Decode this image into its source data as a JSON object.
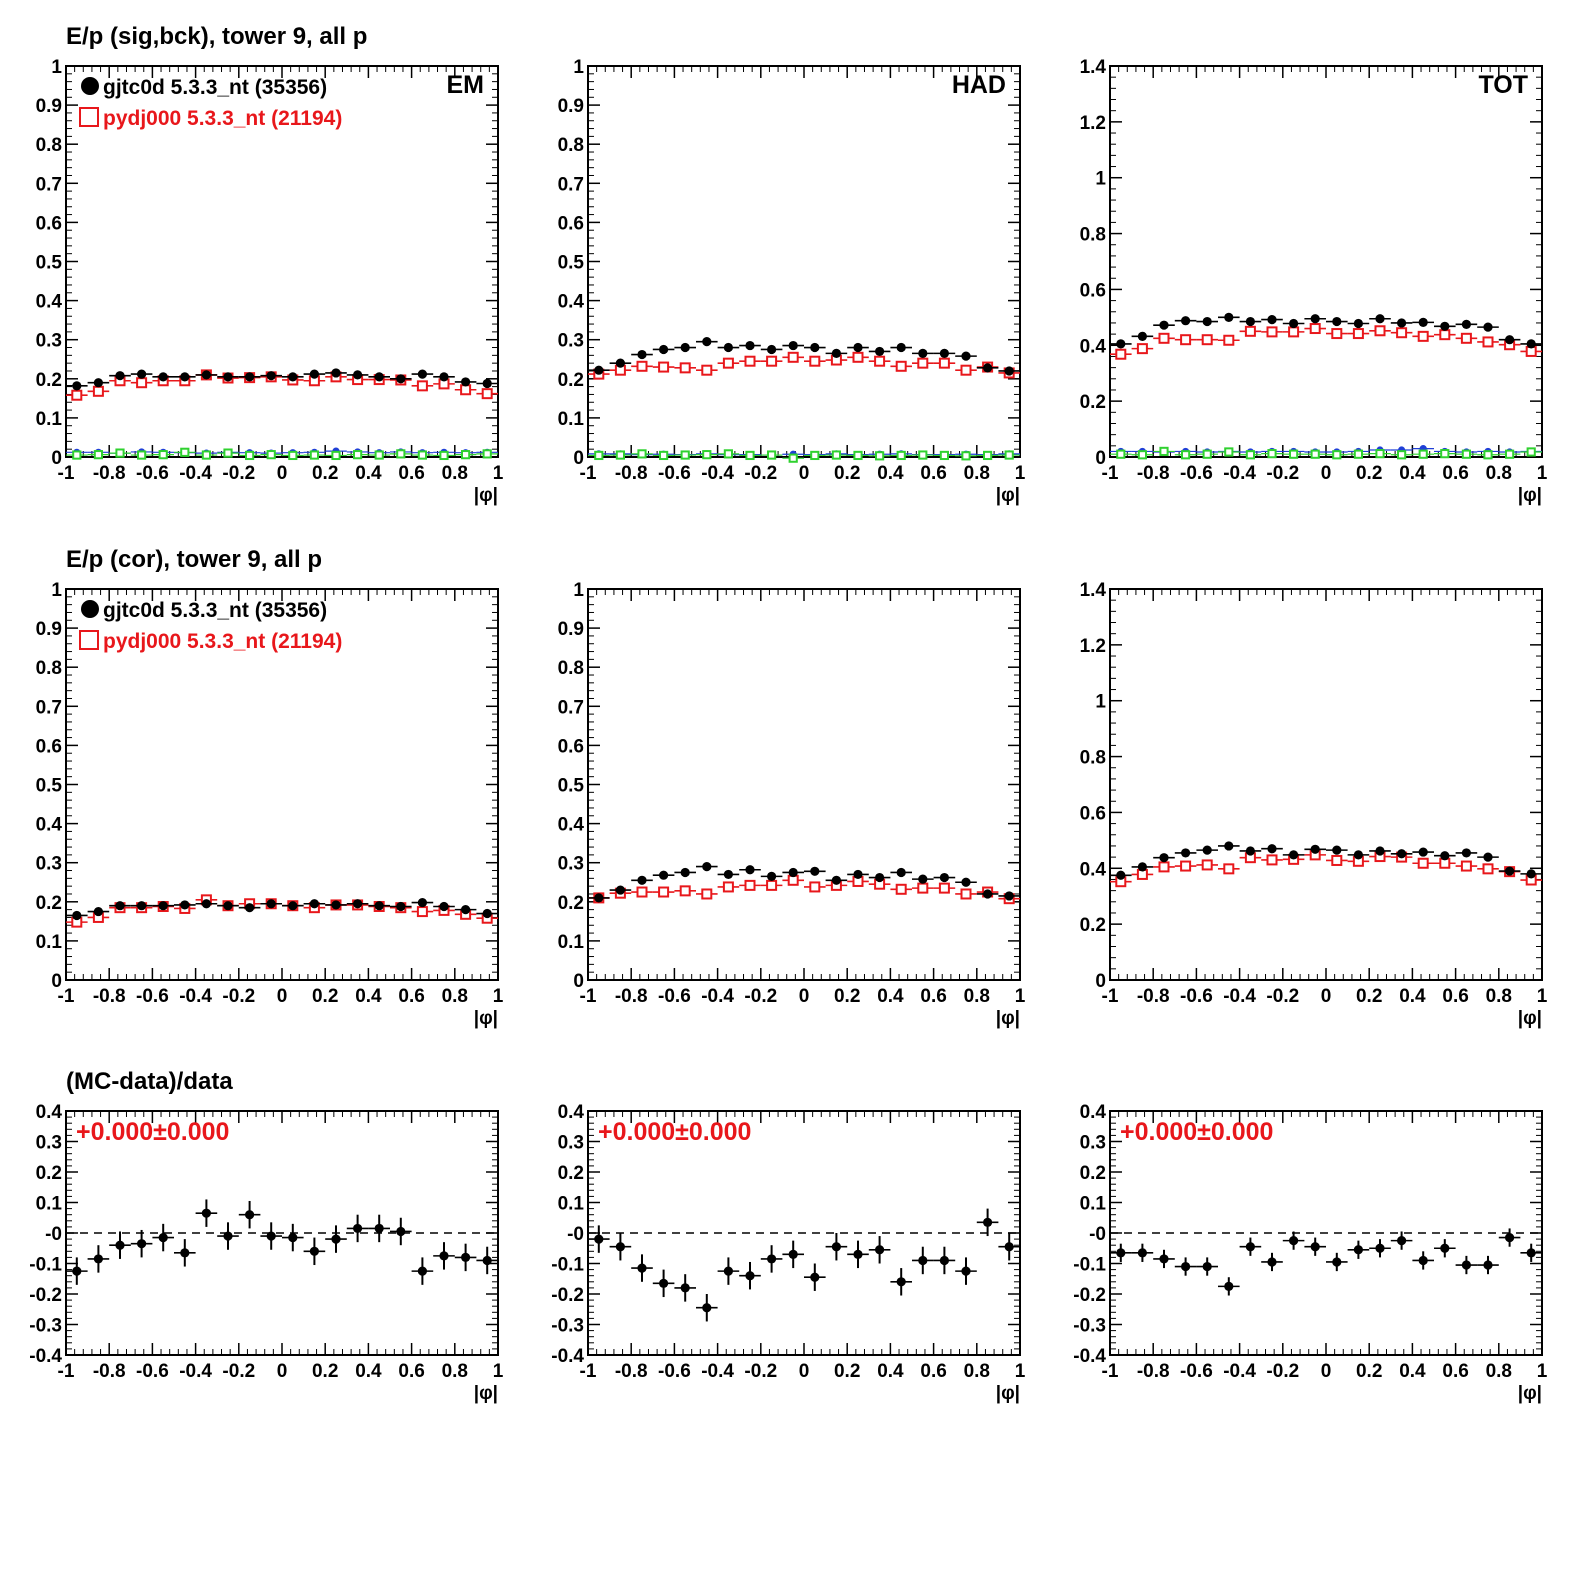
{
  "row_titles": [
    "E/p (sig,bck), tower 9, all p",
    "E/p (cor), tower 9, all p",
    "(MC-data)/data"
  ],
  "x_axis_label": "|φ|",
  "x_ticks": [
    "-1",
    "-0.8",
    "-0.6",
    "-0.4",
    "-0.2",
    "0",
    "0.2",
    "0.4",
    "0.6",
    "0.8",
    "1"
  ],
  "legend": [
    {
      "label": "gjtc0d 5.3.3_nt (35356)",
      "color": "#000000",
      "marker": "filled-circle"
    },
    {
      "label": "pydj000 5.3.3_nt (21194)",
      "color": "#e8171b",
      "marker": "open-square"
    }
  ],
  "colors": {
    "data": "#000000",
    "mc": "#e8171b",
    "bck_blue": "#1f3fd6",
    "bck_green": "#2fd12f"
  },
  "fit_label": "+0.000±0.000",
  "chart_data": [
    {
      "panel": "row1-EM",
      "type": "scatter",
      "corner_label": "EM",
      "xlabel": "|φ|",
      "xlim": [
        -1,
        1
      ],
      "ylim": [
        0,
        1
      ],
      "yticks": [
        "0",
        "0.1",
        "0.2",
        "0.3",
        "0.4",
        "0.5",
        "0.6",
        "0.7",
        "0.8",
        "0.9",
        "1"
      ],
      "x": [
        -0.95,
        -0.85,
        -0.75,
        -0.65,
        -0.55,
        -0.45,
        -0.35,
        -0.25,
        -0.15,
        -0.05,
        0.05,
        0.15,
        0.25,
        0.35,
        0.45,
        0.55,
        0.65,
        0.75,
        0.85,
        0.95
      ],
      "series": [
        {
          "name": "gjtc0d 5.3.3_nt (35356)",
          "values": [
            0.182,
            0.19,
            0.208,
            0.212,
            0.205,
            0.205,
            0.21,
            0.205,
            0.205,
            0.208,
            0.205,
            0.212,
            0.215,
            0.21,
            0.205,
            0.2,
            0.212,
            0.205,
            0.192,
            0.188
          ]
        },
        {
          "name": "pydj000 5.3.3_nt (21194)",
          "values": [
            0.158,
            0.168,
            0.195,
            0.19,
            0.195,
            0.195,
            0.21,
            0.202,
            0.203,
            0.205,
            0.197,
            0.195,
            0.205,
            0.198,
            0.198,
            0.197,
            0.182,
            0.187,
            0.172,
            0.162
          ]
        },
        {
          "values": [
            0.012,
            0.012,
            0.01,
            0.013,
            0.012,
            0.011,
            0.01,
            0.012,
            0.011,
            0.01,
            0.011,
            0.012,
            0.015,
            0.013,
            0.011,
            0.013,
            0.011,
            0.012,
            0.011,
            0.012
          ]
        },
        {
          "values": [
            0.005,
            0.006,
            0.01,
            0.005,
            0.006,
            0.012,
            0.005,
            0.01,
            0.004,
            0.006,
            0.004,
            0.005,
            0.004,
            0.006,
            0.005,
            0.008,
            0.005,
            0.004,
            0.006,
            0.008
          ]
        }
      ]
    },
    {
      "panel": "row1-HAD",
      "type": "scatter",
      "corner_label": "HAD",
      "xlabel": "|φ|",
      "xlim": [
        -1,
        1
      ],
      "ylim": [
        0,
        1
      ],
      "yticks": [
        "0",
        "0.1",
        "0.2",
        "0.3",
        "0.4",
        "0.5",
        "0.6",
        "0.7",
        "0.8",
        "0.9",
        "1"
      ],
      "x": [
        -0.95,
        -0.85,
        -0.75,
        -0.65,
        -0.55,
        -0.45,
        -0.35,
        -0.25,
        -0.15,
        -0.05,
        0.05,
        0.15,
        0.25,
        0.35,
        0.45,
        0.55,
        0.65,
        0.75,
        0.85,
        0.95
      ],
      "series": [
        {
          "name": "gjtc0d 5.3.3_nt (35356)",
          "values": [
            0.222,
            0.24,
            0.262,
            0.275,
            0.28,
            0.295,
            0.28,
            0.285,
            0.275,
            0.285,
            0.28,
            0.265,
            0.28,
            0.27,
            0.28,
            0.265,
            0.265,
            0.258,
            0.228,
            0.22
          ]
        },
        {
          "name": "pydj000 5.3.3_nt (21194)",
          "values": [
            0.212,
            0.222,
            0.232,
            0.23,
            0.228,
            0.222,
            0.24,
            0.245,
            0.245,
            0.255,
            0.245,
            0.248,
            0.255,
            0.245,
            0.232,
            0.24,
            0.24,
            0.222,
            0.23,
            0.215
          ]
        },
        {
          "values": [
            0.008,
            0.008,
            0.006,
            0.007,
            0.006,
            0.008,
            0.006,
            0.006,
            0.005,
            0.007,
            0.006,
            0.008,
            0.006,
            0.007,
            0.008,
            0.006,
            0.006,
            0.007,
            0.006,
            0.008
          ]
        },
        {
          "values": [
            0.004,
            0.005,
            0.008,
            0.004,
            0.005,
            0.006,
            0.008,
            0.004,
            0.005,
            -0.003,
            0.004,
            0.005,
            0.004,
            0.003,
            0.004,
            0.005,
            0.004,
            0.003,
            0.004,
            0.005
          ]
        }
      ]
    },
    {
      "panel": "row1-TOT",
      "type": "scatter",
      "corner_label": "TOT",
      "xlabel": "|φ|",
      "xlim": [
        -1,
        1
      ],
      "ylim": [
        0,
        1.4
      ],
      "yticks": [
        "0",
        "0.2",
        "0.4",
        "0.6",
        "0.8",
        "1",
        "1.2",
        "1.4"
      ],
      "x": [
        -0.95,
        -0.85,
        -0.75,
        -0.65,
        -0.55,
        -0.45,
        -0.35,
        -0.25,
        -0.15,
        -0.05,
        0.05,
        0.15,
        0.25,
        0.35,
        0.45,
        0.55,
        0.65,
        0.75,
        0.85,
        0.95
      ],
      "series": [
        {
          "name": "gjtc0d 5.3.3_nt (35356)",
          "values": [
            0.405,
            0.432,
            0.472,
            0.488,
            0.485,
            0.5,
            0.485,
            0.492,
            0.478,
            0.495,
            0.485,
            0.478,
            0.495,
            0.48,
            0.482,
            0.468,
            0.475,
            0.465,
            0.42,
            0.405
          ]
        },
        {
          "name": "pydj000 5.3.3_nt (21194)",
          "values": [
            0.368,
            0.388,
            0.425,
            0.42,
            0.42,
            0.418,
            0.45,
            0.448,
            0.448,
            0.46,
            0.442,
            0.442,
            0.452,
            0.445,
            0.432,
            0.438,
            0.425,
            0.412,
            0.402,
            0.378
          ]
        },
        {
          "values": [
            0.02,
            0.02,
            0.018,
            0.02,
            0.018,
            0.02,
            0.018,
            0.02,
            0.02,
            0.018,
            0.018,
            0.02,
            0.025,
            0.025,
            0.03,
            0.02,
            0.018,
            0.02,
            0.018,
            0.02
          ]
        },
        {
          "values": [
            0.01,
            0.008,
            0.02,
            0.008,
            0.01,
            0.018,
            0.008,
            0.012,
            0.01,
            0.01,
            0.008,
            0.01,
            0.012,
            0.008,
            0.01,
            0.012,
            0.01,
            0.008,
            0.01,
            0.018
          ]
        }
      ]
    },
    {
      "panel": "row2-EM",
      "type": "scatter",
      "xlabel": "|φ|",
      "xlim": [
        -1,
        1
      ],
      "ylim": [
        0,
        1
      ],
      "yticks": [
        "0",
        "0.1",
        "0.2",
        "0.3",
        "0.4",
        "0.5",
        "0.6",
        "0.7",
        "0.8",
        "0.9",
        "1"
      ],
      "x": [
        -0.95,
        -0.85,
        -0.75,
        -0.65,
        -0.55,
        -0.45,
        -0.35,
        -0.25,
        -0.15,
        -0.05,
        0.05,
        0.15,
        0.25,
        0.35,
        0.45,
        0.55,
        0.65,
        0.75,
        0.85,
        0.95
      ],
      "series": [
        {
          "name": "gjtc0d 5.3.3_nt (35356)",
          "values": [
            0.165,
            0.175,
            0.19,
            0.19,
            0.19,
            0.192,
            0.195,
            0.19,
            0.185,
            0.195,
            0.19,
            0.195,
            0.192,
            0.195,
            0.19,
            0.188,
            0.198,
            0.188,
            0.18,
            0.17
          ]
        },
        {
          "name": "pydj000 5.3.3_nt (21194)",
          "values": [
            0.148,
            0.16,
            0.185,
            0.185,
            0.188,
            0.183,
            0.205,
            0.19,
            0.195,
            0.195,
            0.19,
            0.185,
            0.192,
            0.192,
            0.188,
            0.185,
            0.175,
            0.178,
            0.168,
            0.158
          ]
        }
      ]
    },
    {
      "panel": "row2-HAD",
      "type": "scatter",
      "xlabel": "|φ|",
      "xlim": [
        -1,
        1
      ],
      "ylim": [
        0,
        1
      ],
      "yticks": [
        "0",
        "0.1",
        "0.2",
        "0.3",
        "0.4",
        "0.5",
        "0.6",
        "0.7",
        "0.8",
        "0.9",
        "1"
      ],
      "x": [
        -0.95,
        -0.85,
        -0.75,
        -0.65,
        -0.55,
        -0.45,
        -0.35,
        -0.25,
        -0.15,
        -0.05,
        0.05,
        0.15,
        0.25,
        0.35,
        0.45,
        0.55,
        0.65,
        0.75,
        0.85,
        0.95
      ],
      "series": [
        {
          "name": "gjtc0d 5.3.3_nt (35356)",
          "values": [
            0.21,
            0.23,
            0.255,
            0.268,
            0.275,
            0.29,
            0.27,
            0.282,
            0.265,
            0.275,
            0.278,
            0.255,
            0.27,
            0.262,
            0.275,
            0.258,
            0.262,
            0.25,
            0.22,
            0.215
          ]
        },
        {
          "name": "pydj000 5.3.3_nt (21194)",
          "values": [
            0.21,
            0.222,
            0.225,
            0.225,
            0.228,
            0.22,
            0.238,
            0.242,
            0.242,
            0.255,
            0.238,
            0.242,
            0.252,
            0.245,
            0.232,
            0.235,
            0.235,
            0.22,
            0.225,
            0.208
          ]
        }
      ]
    },
    {
      "panel": "row2-TOT",
      "type": "scatter",
      "xlabel": "|φ|",
      "xlim": [
        -1,
        1
      ],
      "ylim": [
        0,
        1.4
      ],
      "yticks": [
        "0",
        "0.2",
        "0.4",
        "0.6",
        "0.8",
        "1",
        "1.2",
        "1.4"
      ],
      "x": [
        -0.95,
        -0.85,
        -0.75,
        -0.65,
        -0.55,
        -0.45,
        -0.35,
        -0.25,
        -0.15,
        -0.05,
        0.05,
        0.15,
        0.25,
        0.35,
        0.45,
        0.55,
        0.65,
        0.75,
        0.85,
        0.95
      ],
      "series": [
        {
          "name": "gjtc0d 5.3.3_nt (35356)",
          "values": [
            0.375,
            0.405,
            0.438,
            0.455,
            0.465,
            0.48,
            0.462,
            0.47,
            0.448,
            0.468,
            0.465,
            0.448,
            0.462,
            0.452,
            0.458,
            0.445,
            0.455,
            0.44,
            0.39,
            0.38
          ]
        },
        {
          "name": "pydj000 5.3.3_nt (21194)",
          "values": [
            0.352,
            0.378,
            0.405,
            0.408,
            0.412,
            0.398,
            0.438,
            0.43,
            0.432,
            0.448,
            0.428,
            0.425,
            0.442,
            0.44,
            0.418,
            0.418,
            0.408,
            0.398,
            0.388,
            0.358
          ]
        }
      ]
    },
    {
      "panel": "row3-EM",
      "type": "scatter",
      "xlabel": "|φ|",
      "xlim": [
        -1,
        1
      ],
      "ylim": [
        -0.4,
        0.4
      ],
      "reference_line": 0,
      "yticks": [
        "-0.4",
        "-0.3",
        "-0.2",
        "-0.1",
        "-0",
        "0.1",
        "0.2",
        "0.3",
        "0.4"
      ],
      "x": [
        -0.95,
        -0.85,
        -0.75,
        -0.65,
        -0.55,
        -0.45,
        -0.35,
        -0.25,
        -0.15,
        -0.05,
        0.05,
        0.15,
        0.25,
        0.35,
        0.45,
        0.55,
        0.65,
        0.75,
        0.85,
        0.95
      ],
      "values": [
        -0.125,
        -0.085,
        -0.04,
        -0.035,
        -0.015,
        -0.065,
        0.065,
        -0.01,
        0.06,
        -0.01,
        -0.015,
        -0.06,
        -0.02,
        0.015,
        0.015,
        0.005,
        -0.125,
        -0.075,
        -0.08,
        -0.09
      ],
      "errors": [
        0.045,
        0.045,
        0.045,
        0.045,
        0.045,
        0.045,
        0.045,
        0.045,
        0.045,
        0.045,
        0.045,
        0.045,
        0.045,
        0.045,
        0.045,
        0.045,
        0.045,
        0.045,
        0.045,
        0.045
      ]
    },
    {
      "panel": "row3-HAD",
      "type": "scatter",
      "xlabel": "|φ|",
      "xlim": [
        -1,
        1
      ],
      "ylim": [
        -0.4,
        0.4
      ],
      "reference_line": 0,
      "yticks": [
        "-0.4",
        "-0.3",
        "-0.2",
        "-0.1",
        "-0",
        "0.1",
        "0.2",
        "0.3",
        "0.4"
      ],
      "x": [
        -0.95,
        -0.85,
        -0.75,
        -0.65,
        -0.55,
        -0.45,
        -0.35,
        -0.25,
        -0.15,
        -0.05,
        0.05,
        0.15,
        0.25,
        0.35,
        0.45,
        0.55,
        0.65,
        0.75,
        0.85,
        0.95
      ],
      "values": [
        -0.02,
        -0.045,
        -0.115,
        -0.165,
        -0.18,
        -0.245,
        -0.125,
        -0.14,
        -0.085,
        -0.07,
        -0.145,
        -0.045,
        -0.07,
        -0.055,
        -0.16,
        -0.09,
        -0.09,
        -0.125,
        0.035,
        -0.045
      ],
      "errors": [
        0.045,
        0.045,
        0.045,
        0.045,
        0.045,
        0.045,
        0.045,
        0.045,
        0.045,
        0.045,
        0.045,
        0.045,
        0.045,
        0.045,
        0.045,
        0.045,
        0.045,
        0.045,
        0.045,
        0.045
      ]
    },
    {
      "panel": "row3-TOT",
      "type": "scatter",
      "xlabel": "|φ|",
      "xlim": [
        -1,
        1
      ],
      "ylim": [
        -0.4,
        0.4
      ],
      "reference_line": 0,
      "yticks": [
        "-0.4",
        "-0.3",
        "-0.2",
        "-0.1",
        "-0",
        "0.1",
        "0.2",
        "0.3",
        "0.4"
      ],
      "x": [
        -0.95,
        -0.85,
        -0.75,
        -0.65,
        -0.55,
        -0.45,
        -0.35,
        -0.25,
        -0.15,
        -0.05,
        0.05,
        0.15,
        0.25,
        0.35,
        0.45,
        0.55,
        0.65,
        0.75,
        0.85,
        0.95
      ],
      "values": [
        -0.065,
        -0.065,
        -0.085,
        -0.11,
        -0.11,
        -0.175,
        -0.045,
        -0.095,
        -0.025,
        -0.045,
        -0.095,
        -0.055,
        -0.05,
        -0.025,
        -0.09,
        -0.05,
        -0.105,
        -0.105,
        -0.015,
        -0.065
      ],
      "errors": [
        0.03,
        0.03,
        0.03,
        0.03,
        0.03,
        0.03,
        0.03,
        0.03,
        0.03,
        0.03,
        0.03,
        0.03,
        0.03,
        0.03,
        0.03,
        0.03,
        0.03,
        0.03,
        0.03,
        0.03
      ]
    }
  ]
}
